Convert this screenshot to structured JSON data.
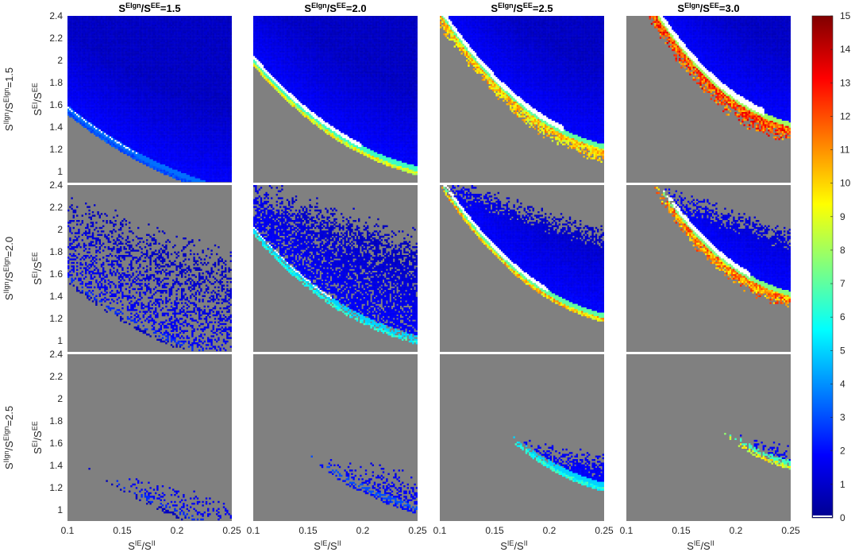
{
  "chart_data": {
    "type": "heatmap",
    "layout": "3x4 grid of panels",
    "column_titles": [
      {
        "base": "S",
        "sup": "EIgn",
        "mid": "/S",
        "sup2": "EE",
        "tail": "=1.5"
      },
      {
        "base": "S",
        "sup": "EIgn",
        "mid": "/S",
        "sup2": "EE",
        "tail": "=2.0"
      },
      {
        "base": "S",
        "sup": "EIgn",
        "mid": "/S",
        "sup2": "EE",
        "tail": "=2.5"
      },
      {
        "base": "S",
        "sup": "EIgn",
        "mid": "/S",
        "sup2": "EE",
        "tail": "=3.0"
      }
    ],
    "row_titles": [
      {
        "base": "S",
        "sup": "IIgn",
        "mid": "/S",
        "sup2": "EIgn",
        "tail": "=1.5"
      },
      {
        "base": "S",
        "sup": "IIgn",
        "mid": "/S",
        "sup2": "EIgn",
        "tail": "=2.0"
      },
      {
        "base": "S",
        "sup": "IIgn",
        "mid": "/S",
        "sup2": "EIgn",
        "tail": "=2.5"
      }
    ],
    "xlabel": {
      "base": "S",
      "sup": "IE",
      "mid": "/S",
      "sup2": "II"
    },
    "ylabel": {
      "base": "S",
      "sup": "EI",
      "mid": "/S",
      "sup2": "EE"
    },
    "xlim": [
      0.1,
      0.25
    ],
    "ylim": [
      0.9,
      2.4
    ],
    "x_ticks": [
      "0.1",
      "0.15",
      "0.2",
      "0.25"
    ],
    "y_ticks": [
      "1",
      "1.2",
      "1.4",
      "1.6",
      "1.8",
      "2",
      "2.2",
      "2.4"
    ],
    "colorbar": {
      "range": [
        0,
        15
      ],
      "ticks": [
        "0",
        "1",
        "2",
        "3",
        "4",
        "5",
        "6",
        "7",
        "8",
        "9",
        "10",
        "11",
        "12",
        "13",
        "14",
        "15"
      ],
      "colormap": "jet"
    },
    "background_color": "#808080",
    "panels": [
      {
        "row": 0,
        "col": 0,
        "boundary_c": 1.15,
        "top_cut": 0,
        "fill": "solid",
        "edge_level": 3,
        "white_band": 0.15,
        "fringe": 0
      },
      {
        "row": 0,
        "col": 1,
        "boundary_c": 1.35,
        "top_cut": 0,
        "fill": "solid",
        "edge_level": 9,
        "white_band": 0.55,
        "fringe": 0
      },
      {
        "row": 0,
        "col": 2,
        "boundary_c": 1.55,
        "top_cut": 0,
        "fill": "solid",
        "edge_level": 10,
        "white_band": 0.7,
        "fringe": 0.1
      },
      {
        "row": 0,
        "col": 3,
        "boundary_c": 1.75,
        "top_cut": 0,
        "fill": "solid",
        "edge_level": 12,
        "white_band": 0.85,
        "fringe": 0.15
      },
      {
        "row": 1,
        "col": 0,
        "boundary_c": 1.15,
        "top_cut": 2.2,
        "fill": "sparse",
        "edge_level": 1,
        "white_band": 0,
        "fringe": 0
      },
      {
        "row": 1,
        "col": 1,
        "boundary_c": 1.35,
        "top_cut": 2.4,
        "fill": "scatter",
        "edge_level": 6,
        "white_band": 0.25,
        "fringe": 0
      },
      {
        "row": 1,
        "col": 2,
        "boundary_c": 1.55,
        "top_cut": 2.4,
        "fill": "solid",
        "edge_level": 10,
        "white_band": 0.55,
        "fringe": 0
      },
      {
        "row": 1,
        "col": 3,
        "boundary_c": 1.75,
        "top_cut": 2.4,
        "fill": "solid",
        "edge_level": 11,
        "white_band": 0.7,
        "fringe": 0.1
      },
      {
        "row": 2,
        "col": 0,
        "boundary_c": 1.15,
        "top_cut": 1.3,
        "fill": "sparse",
        "edge_level": 1,
        "white_band": 0,
        "fringe": 0
      },
      {
        "row": 2,
        "col": 1,
        "boundary_c": 1.35,
        "top_cut": 1.55,
        "fill": "scatter",
        "edge_level": 2,
        "white_band": 0,
        "fringe": 0
      },
      {
        "row": 2,
        "col": 2,
        "boundary_c": 1.55,
        "top_cut": 1.7,
        "fill": "solid",
        "edge_level": 6,
        "white_band": 0.2,
        "fringe": 0
      },
      {
        "row": 2,
        "col": 3,
        "boundary_c": 1.75,
        "top_cut": 1.78,
        "fill": "solid",
        "edge_level": 9,
        "white_band": 0.3,
        "fringe": 0
      }
    ]
  }
}
